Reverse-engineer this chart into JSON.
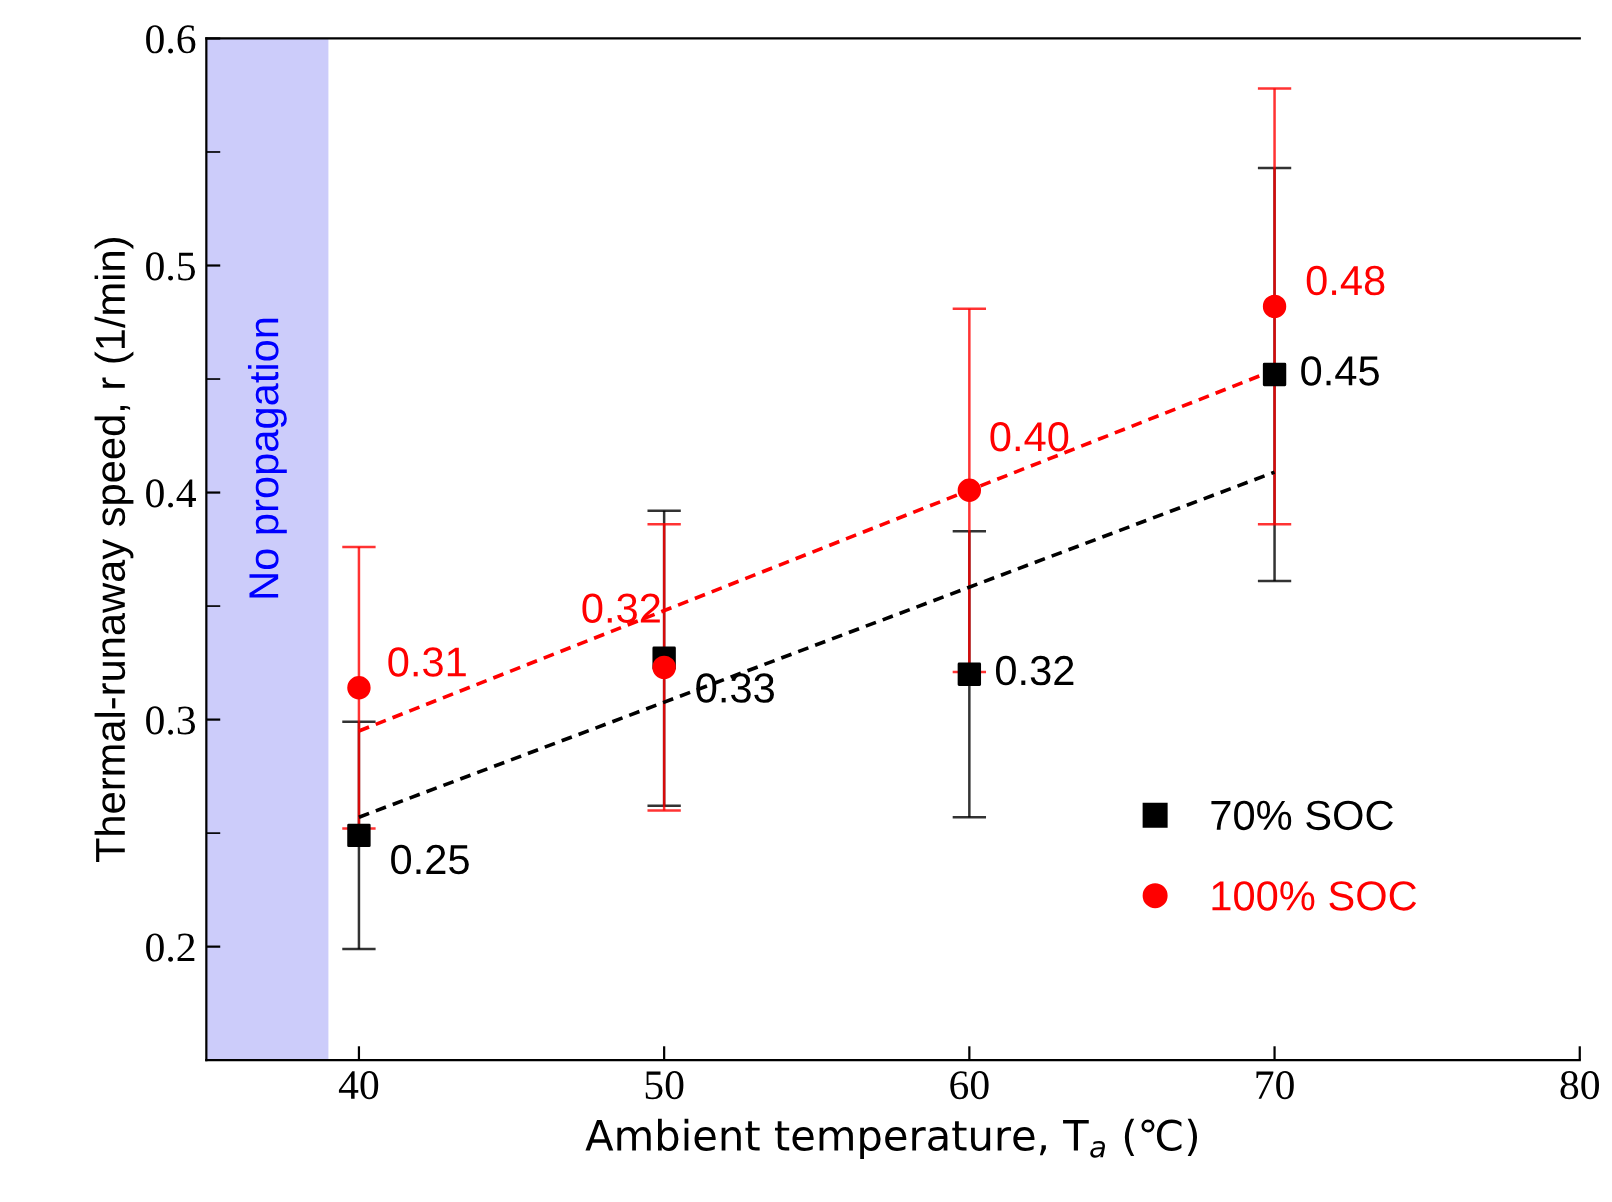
{
  "chart_data": {
    "type": "scatter",
    "xlabel": "Ambient temperature, T$_{a}$ (℃)",
    "ylabel": "Thermal-runaway speed, r (1/min)",
    "xlim": [
      35,
      80
    ],
    "xticks": [
      40,
      50,
      60,
      70,
      80
    ],
    "ylim": [
      0.15,
      0.6
    ],
    "yticks": [
      0.2,
      0.3,
      0.4,
      0.5,
      0.6
    ],
    "grid": false,
    "legend": "bottom right",
    "bands": [
      {
        "axis": "x",
        "from": 35,
        "to": 39,
        "label": "No propagation",
        "color": "#ccccfa"
      }
    ],
    "series": [
      {
        "name": "70% SOC",
        "marker": "square",
        "color": "#000000",
        "x": [
          40,
          50,
          60,
          70
        ],
        "values": [
          0.249,
          0.327,
          0.32,
          0.452
        ],
        "errors": [
          0.05,
          0.065,
          0.063,
          0.091
        ],
        "value_labels": [
          "0.25",
          "0.33",
          "0.32",
          "0.45"
        ]
      },
      {
        "name": "100% SOC",
        "marker": "circle",
        "color": "#ff0000",
        "x": [
          40,
          50,
          60,
          70
        ],
        "values": [
          0.314,
          0.323,
          0.401,
          0.482
        ],
        "errors": [
          0.062,
          0.063,
          0.08,
          0.096
        ],
        "value_labels": [
          "0.31",
          "0.32",
          "0.40",
          "0.48"
        ]
      },
      {
        "type": "line",
        "line_style": "dashed",
        "color": "#000000",
        "x": [
          40,
          70
        ],
        "values": [
          0.257,
          0.409
        ]
      },
      {
        "type": "line",
        "line_style": "dashed",
        "color": "#ff0000",
        "x": [
          40,
          70
        ],
        "values": [
          0.295,
          0.454
        ]
      }
    ]
  }
}
